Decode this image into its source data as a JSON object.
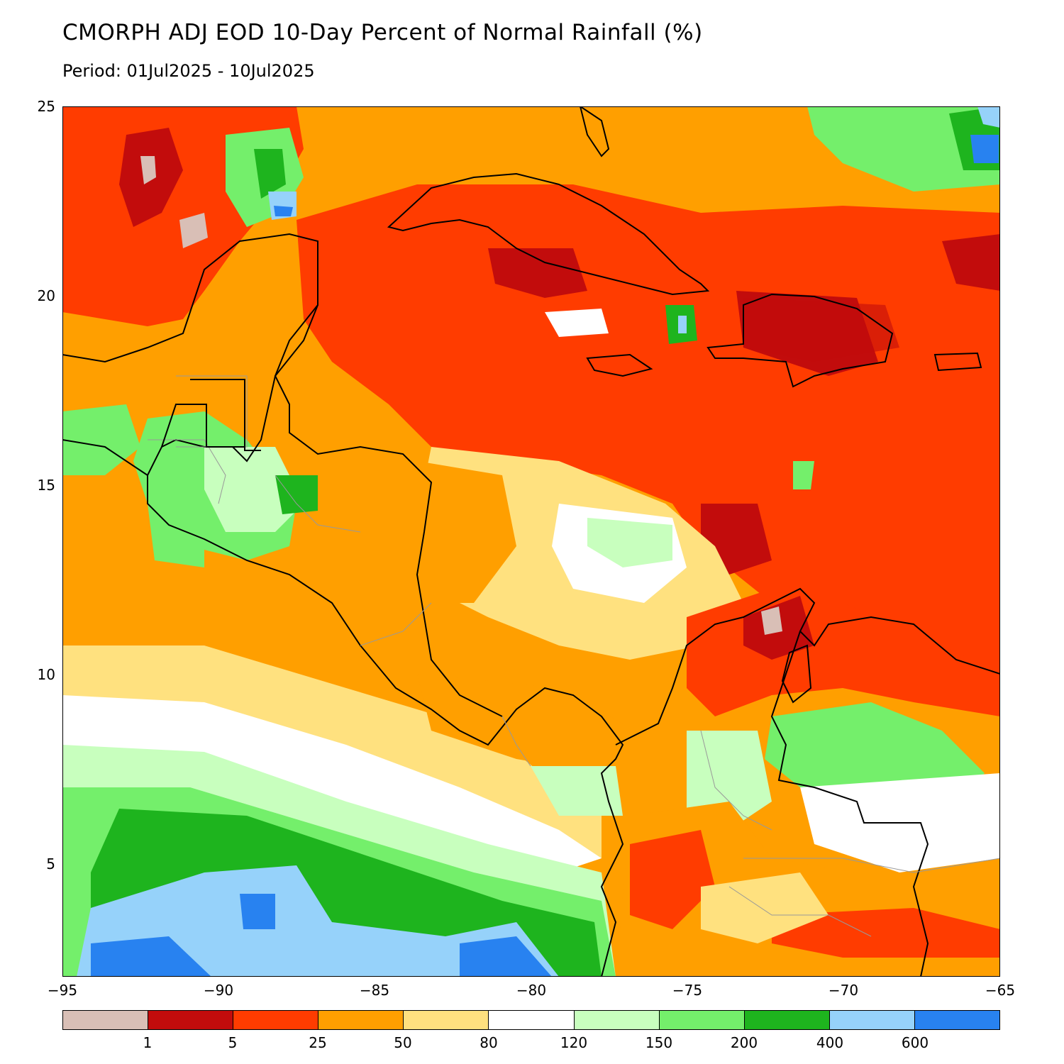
{
  "title": "CMORPH ADJ EOD 10-Day Percent of Normal Rainfall (%)",
  "subtitle": "Period: 01Jul2025 - 10Jul2025",
  "axes": {
    "y_ticks": [
      "25",
      "20",
      "15",
      "10",
      "5"
    ],
    "x_ticks": [
      "−95",
      "−90",
      "−85",
      "−80",
      "−75",
      "−70",
      "−65"
    ],
    "lon_range": [
      -95,
      -65
    ],
    "lat_range": [
      2.3,
      25
    ]
  },
  "colorbar": {
    "labels": [
      "1",
      "5",
      "25",
      "50",
      "80",
      "120",
      "150",
      "200",
      "400",
      "600"
    ],
    "colors": [
      "#d9bfb6",
      "#c20c0c",
      "#ff3c00",
      "#ff9f00",
      "#ffe17f",
      "#ffffff",
      "#c8ffbe",
      "#74ef6b",
      "#1eb41e",
      "#96d2fa",
      "#2882f0"
    ]
  }
}
